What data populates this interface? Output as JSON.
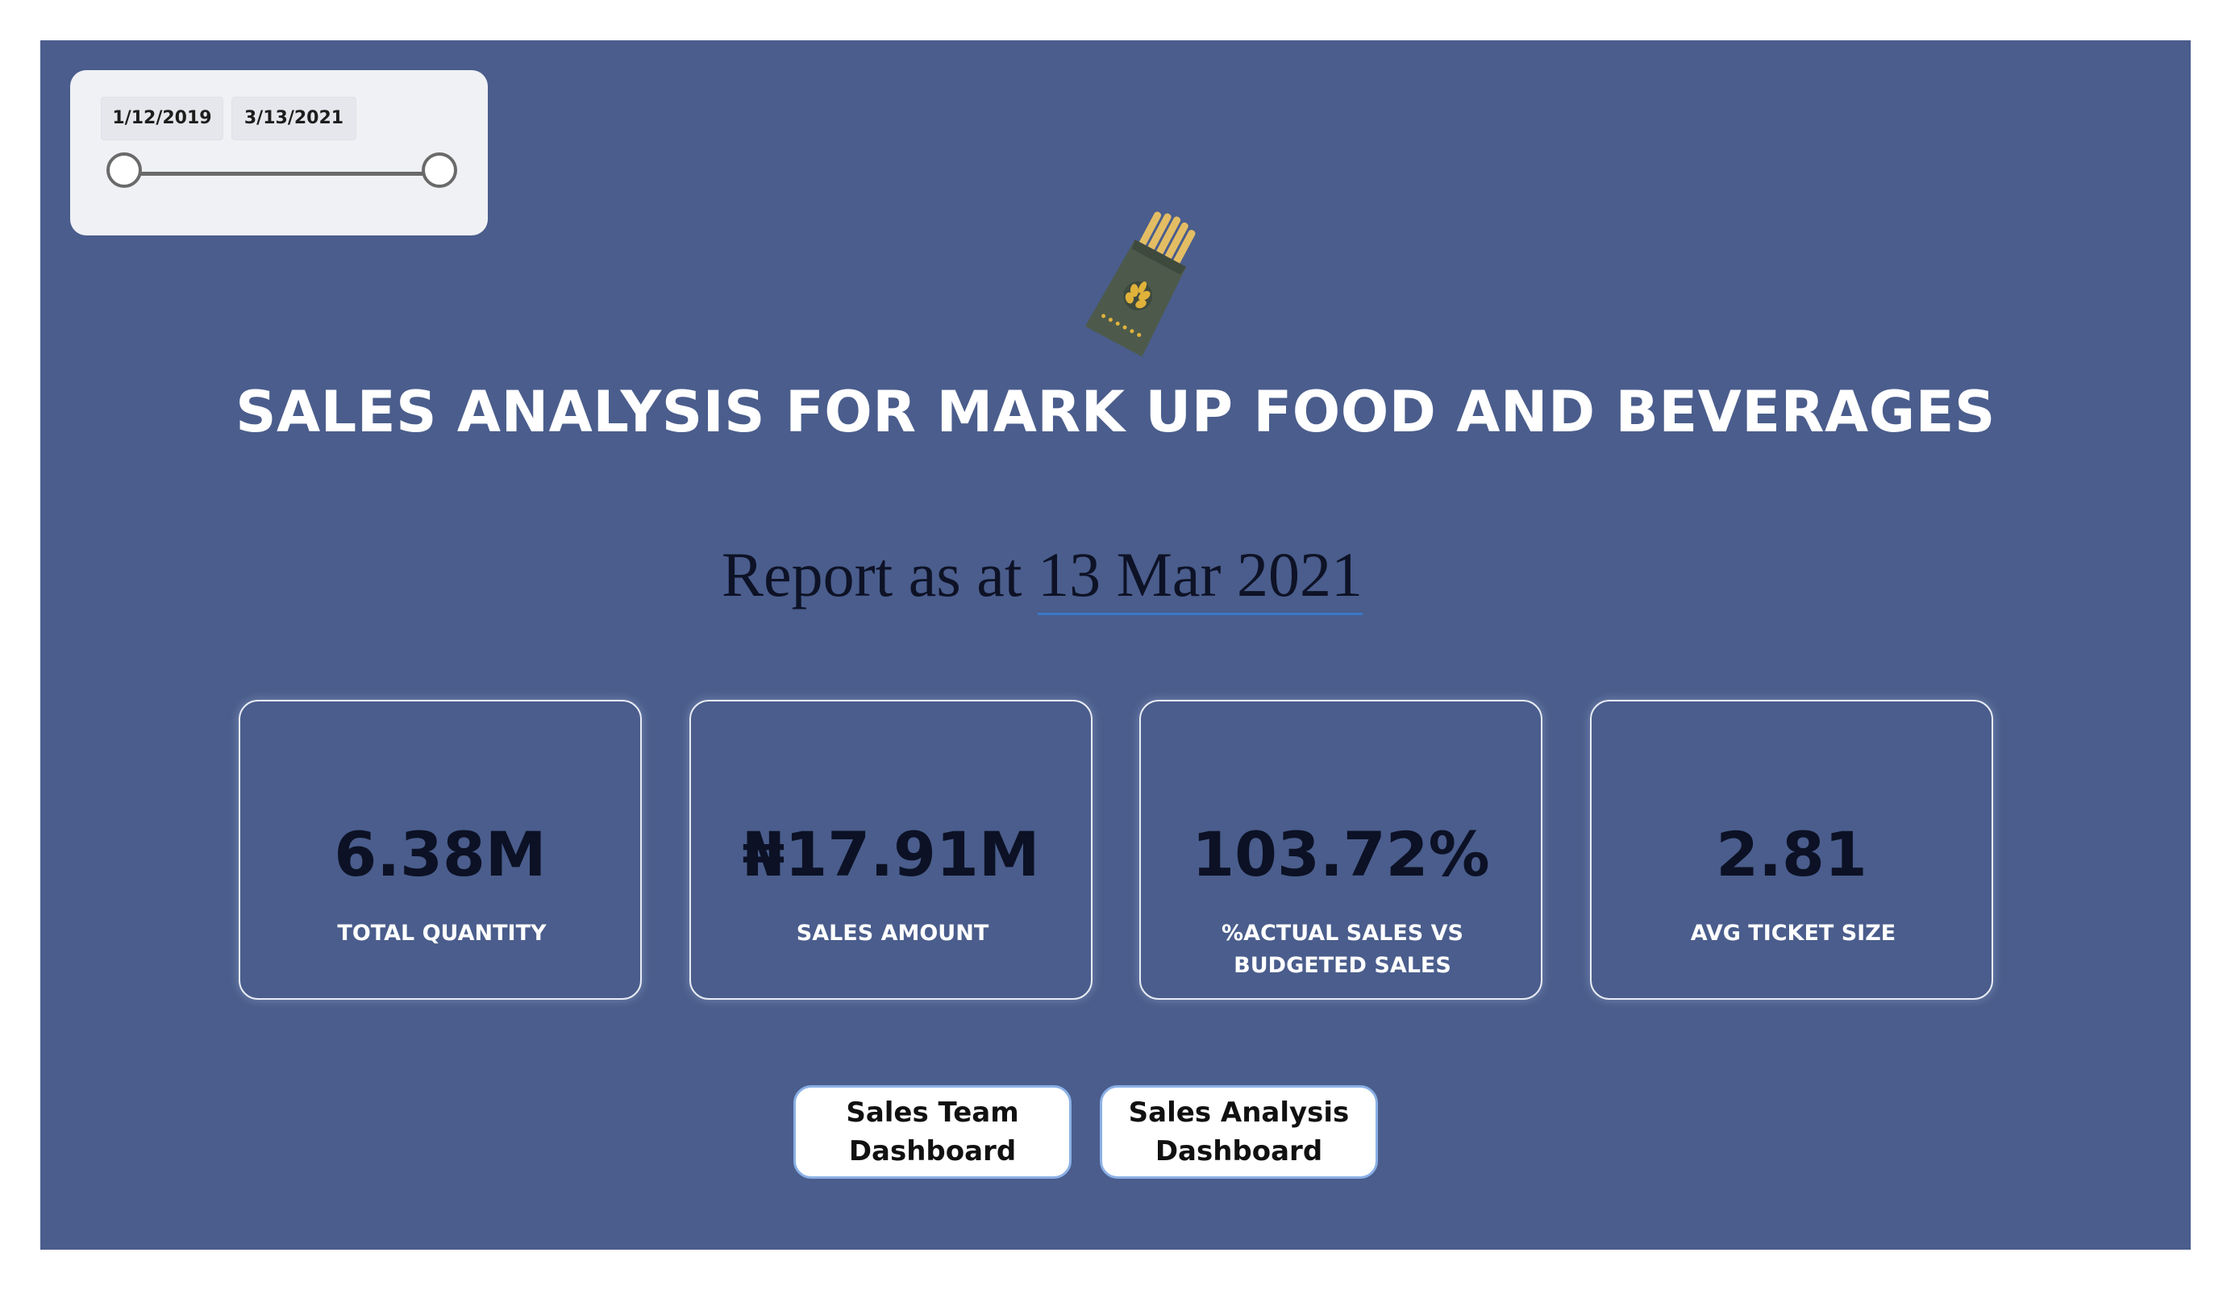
{
  "date_slicer": {
    "start_date": "1/12/2019",
    "end_date": "3/13/2021"
  },
  "logo": {
    "icon": "grain-bag-icon"
  },
  "title": "SALES ANALYSIS FOR MARK UP FOOD AND BEVERAGES",
  "report": {
    "prefix": "Report as at",
    "date": "13 Mar 2021"
  },
  "kpis": [
    {
      "value": "6.38M",
      "label": "TOTAL QUANTITY"
    },
    {
      "value": "₦17.91M",
      "label": "SALES AMOUNT"
    },
    {
      "value": "103.72%",
      "label": "%ACTUAL SALES VS BUDGETED SALES"
    },
    {
      "value": "2.81",
      "label": "AVG TICKET SIZE"
    }
  ],
  "nav_buttons": [
    {
      "label": "Sales Team\nDashboard"
    },
    {
      "label": "Sales Analysis\nDashboard"
    }
  ],
  "colors": {
    "background": "#4a5d8c",
    "card_border": "#e8ecf5",
    "kpi_value": "#0c1125",
    "accent_underline": "#3a78c8"
  }
}
